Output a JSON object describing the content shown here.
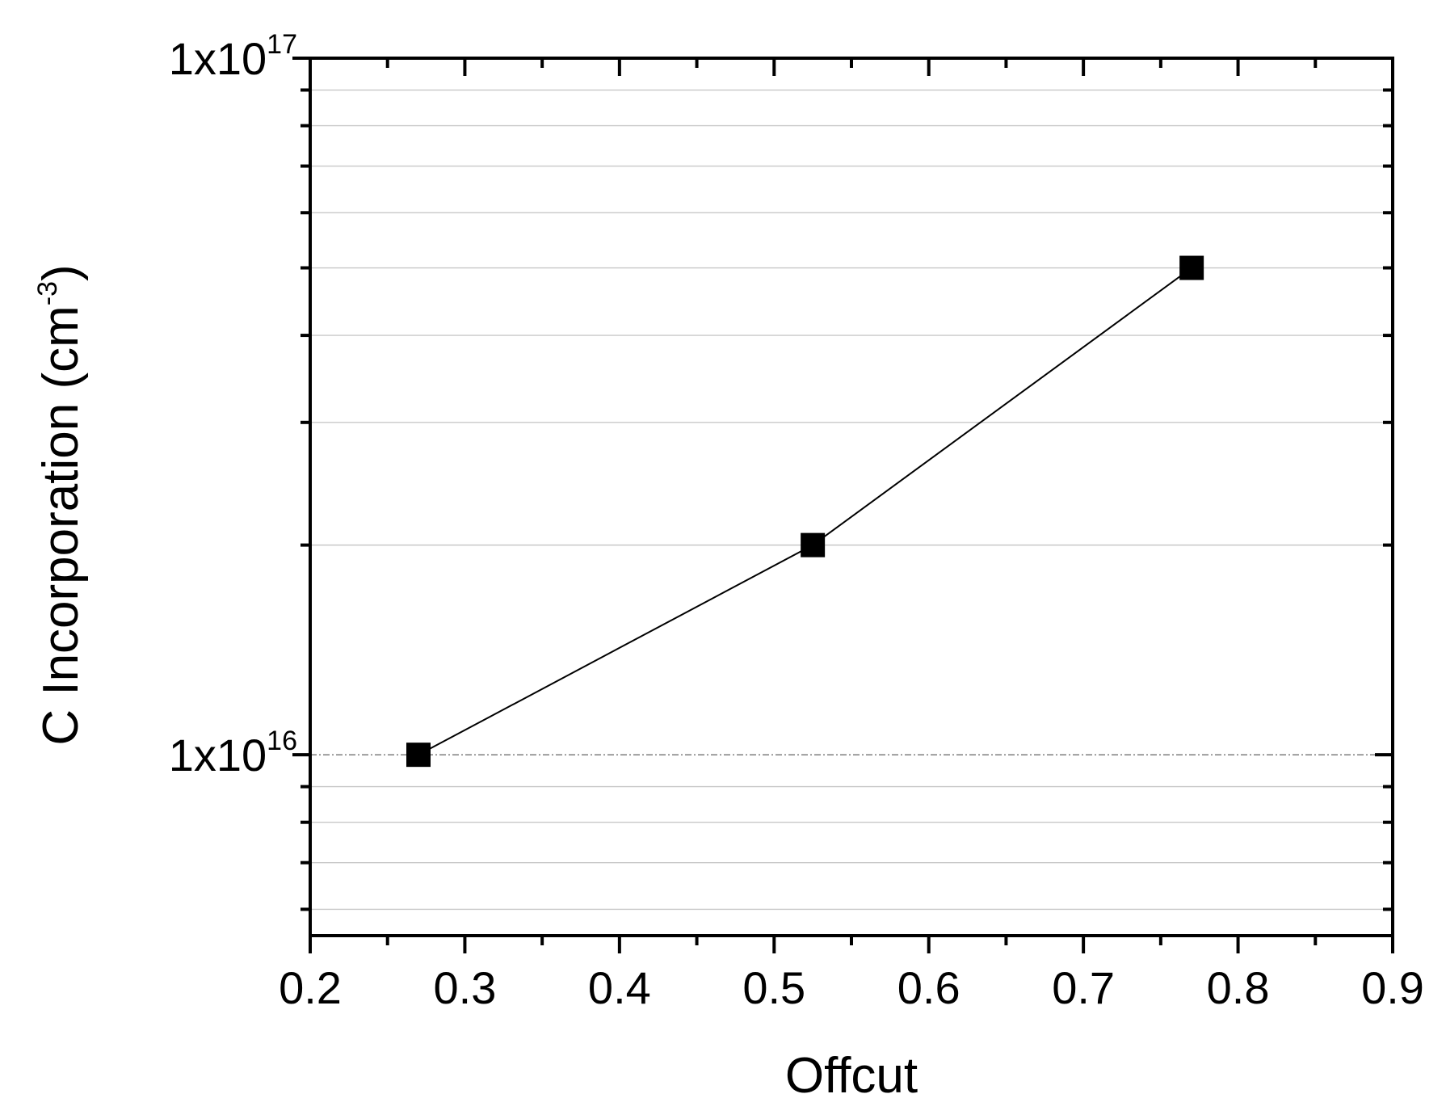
{
  "chart_data": {
    "type": "line",
    "xlabel": "Offcut",
    "ylabel": {
      "base": "C Incorporation (cm",
      "sup": "-3",
      "close": ")"
    },
    "x_scale": "linear",
    "y_scale": "log",
    "xlim": [
      0.2,
      0.9
    ],
    "ylim": [
      5500000000000000,
      100000000000000000
    ],
    "x_ticks": [
      {
        "value": 0.2,
        "label": "0.2"
      },
      {
        "value": 0.3,
        "label": "0.3"
      },
      {
        "value": 0.4,
        "label": "0.4"
      },
      {
        "value": 0.5,
        "label": "0.5"
      },
      {
        "value": 0.6,
        "label": "0.6"
      },
      {
        "value": 0.7,
        "label": "0.7"
      },
      {
        "value": 0.8,
        "label": "0.8"
      },
      {
        "value": 0.9,
        "label": "0.9"
      }
    ],
    "y_ticks": [
      {
        "value": 10000000000000000,
        "mantissa": "1x10",
        "exponent": "16"
      },
      {
        "value": 100000000000000000,
        "mantissa": "1x10",
        "exponent": "17"
      }
    ],
    "grid": true,
    "marker": "square",
    "colors": {
      "series": "#000000",
      "grid": "#c8c8c8",
      "axis": "#000000"
    },
    "series": [
      {
        "x": [
          0.27,
          0.525,
          0.77
        ],
        "y": [
          10000000000000000,
          20000000000000000,
          50000000000000000
        ]
      }
    ]
  }
}
